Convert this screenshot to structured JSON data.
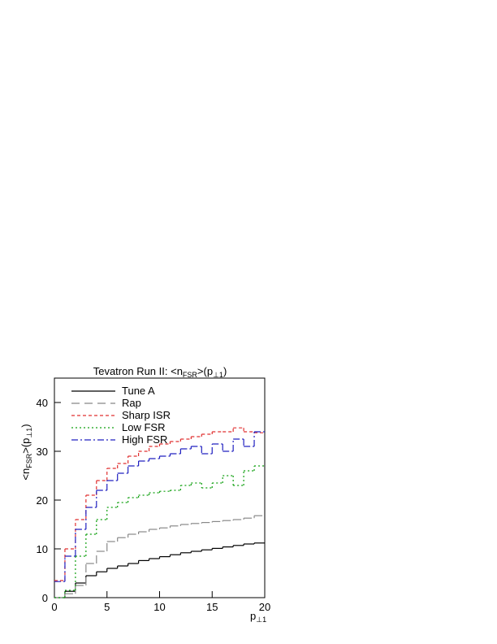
{
  "chart_data": {
    "type": "histogram",
    "title": [
      "Tevatron Run II: <n",
      "FSR",
      ">(p",
      "⊥1",
      ")"
    ],
    "y_label": [
      "<n",
      "FSR",
      ">(p",
      "⊥1",
      ")"
    ],
    "x_label": [
      "p",
      "⊥1"
    ],
    "bins": [
      0,
      1,
      2,
      3,
      4,
      5,
      6,
      7,
      8,
      9,
      10,
      11,
      12,
      13,
      14,
      15,
      16,
      17,
      18,
      19,
      20
    ],
    "xlim": [
      0,
      20
    ],
    "xticks": [
      0,
      5,
      10,
      15,
      20
    ],
    "ylim": [
      0,
      45
    ],
    "yticks": [
      0,
      10,
      20,
      30,
      40
    ],
    "legend": "top-left",
    "series": [
      {
        "name": "Tune A",
        "color": "#000000",
        "dash": "none",
        "values": [
          0,
          1.3,
          3,
          4.5,
          5.3,
          6,
          6.5,
          7,
          7.6,
          8,
          8.4,
          8.8,
          9.2,
          9.5,
          9.8,
          10.1,
          10.4,
          10.7,
          11,
          11.2
        ]
      },
      {
        "name": "Rap",
        "color": "#888888",
        "dash": "10,6",
        "values": [
          0,
          0.8,
          2.5,
          7,
          9.5,
          11.5,
          12.3,
          13,
          13.5,
          14,
          14.3,
          14.7,
          15,
          15.2,
          15.4,
          15.6,
          15.8,
          16,
          16.3,
          16.8
        ]
      },
      {
        "name": "Sharp ISR",
        "color": "#e03030",
        "dash": "4,3",
        "values": [
          3.5,
          10,
          16,
          21,
          24,
          26.5,
          27.5,
          29,
          30,
          31,
          31.5,
          32,
          32.5,
          33,
          33.5,
          34,
          34,
          34.8,
          34,
          33.8
        ]
      },
      {
        "name": "Low FSR",
        "color": "#10a010",
        "dash": "2,3",
        "values": [
          0,
          1.5,
          8.5,
          13,
          16,
          18.5,
          19.5,
          20.5,
          21,
          21.5,
          21.8,
          22,
          23,
          23.5,
          22.5,
          23.5,
          25,
          23,
          26,
          27
        ]
      },
      {
        "name": "High FSR",
        "color": "#2020c0",
        "dash": "8,3,2,3",
        "values": [
          3.3,
          8.5,
          14,
          18.5,
          22,
          24,
          25.5,
          27,
          28,
          28.5,
          29,
          29.5,
          30.5,
          31,
          29.5,
          31.5,
          30,
          32.5,
          31,
          34
        ]
      }
    ]
  }
}
